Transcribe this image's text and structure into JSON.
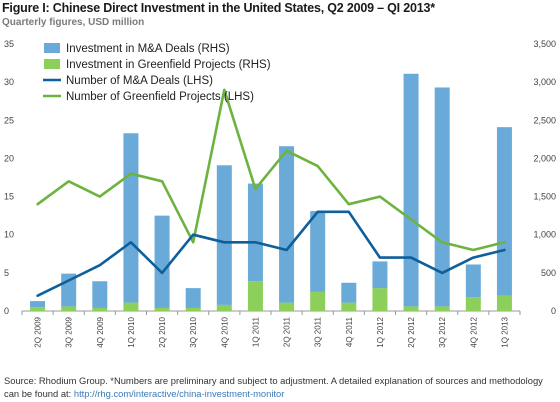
{
  "title": "Figure I: Chinese Direct Investment in the United States, Q2 2009 – QI 2013*",
  "subtitle": "Quarterly figures, USD million",
  "footer": {
    "text": "Source: Rhodium Group. *Numbers are preliminary and subject to adjustment. A detailed explanation of sources and methodology can be found at: ",
    "link": "http://rhg.com/interactive/china-investment-monitor"
  },
  "colors": {
    "ma_bar": "#6aaad8",
    "greenfield_bar": "#8ccf5a",
    "ma_line": "#0e5f9a",
    "greenfield_line": "#6db33f",
    "axis": "#999999"
  },
  "chart_data": {
    "type": "bar",
    "categories": [
      "2Q 2009",
      "3Q 2009",
      "4Q 2009",
      "1Q 2010",
      "2Q 2010",
      "3Q 2010",
      "4Q 2010",
      "1Q 2011",
      "2Q 2011",
      "3Q 2011",
      "4Q 2011",
      "1Q 2012",
      "2Q 2012",
      "3Q 2012",
      "4Q 2012",
      "1Q 2013"
    ],
    "left_axis": {
      "ylim": [
        0,
        35
      ],
      "ticks": [
        "0",
        "5",
        "10",
        "15",
        "20",
        "25",
        "30",
        "35"
      ]
    },
    "right_axis": {
      "ylim": [
        0,
        3500
      ],
      "ticks": [
        "0",
        "500",
        "1,000",
        "1,500",
        "2,000",
        "2,500",
        "3,000",
        "3,500"
      ]
    },
    "legend_placement": "top-left",
    "series": [
      {
        "name": "Investment in M&A Deals (RHS)",
        "type": "bar",
        "axis": "right",
        "values": [
          80,
          430,
          350,
          2220,
          1210,
          260,
          1830,
          1280,
          2050,
          1060,
          260,
          350,
          3050,
          2870,
          430,
          2210
        ]
      },
      {
        "name": "Investment in Greenfield Projects (RHS)",
        "type": "bar",
        "axis": "right",
        "values": [
          50,
          60,
          40,
          110,
          40,
          40,
          80,
          390,
          110,
          250,
          110,
          300,
          60,
          60,
          180,
          200
        ]
      },
      {
        "name": "Number of M&A Deals (LHS)",
        "type": "line",
        "axis": "left",
        "values": [
          2,
          4,
          6,
          9,
          5,
          10,
          9,
          9,
          8,
          13,
          13,
          7,
          7,
          5,
          7,
          8
        ]
      },
      {
        "name": "Number of Greenfield Projects (LHS)",
        "type": "line",
        "axis": "left",
        "values": [
          14,
          17,
          15,
          18,
          17,
          9,
          29,
          16,
          21,
          19,
          14,
          15,
          12,
          9,
          8,
          9
        ]
      }
    ]
  }
}
